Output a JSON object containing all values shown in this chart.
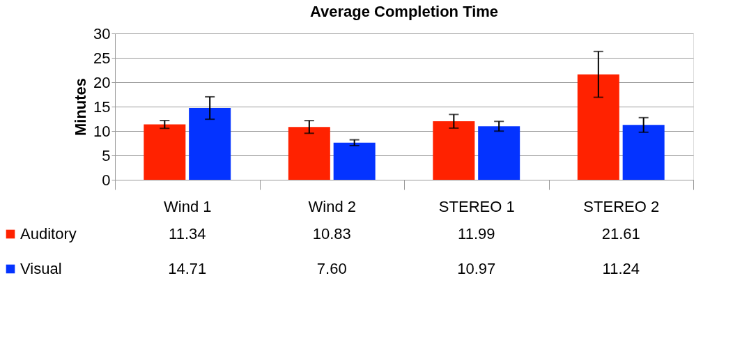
{
  "chart_data": {
    "type": "bar",
    "title": "Average Completion Time",
    "ylabel": "Minutes",
    "categories": [
      "Wind 1",
      "Wind 2",
      "STEREO 1",
      "STEREO 2"
    ],
    "series": [
      {
        "name": "Auditory",
        "color": "#ff2200",
        "values": [
          11.34,
          10.83,
          11.99,
          21.61
        ],
        "value_labels": [
          "11.34",
          "10.83",
          "11.99",
          "21.61"
        ],
        "errors": [
          0.8,
          1.3,
          1.4,
          4.7
        ]
      },
      {
        "name": "Visual",
        "color": "#0433ff",
        "values": [
          14.71,
          7.6,
          10.97,
          11.24
        ],
        "value_labels": [
          "14.71",
          "7.60",
          "10.97",
          "11.24"
        ],
        "errors": [
          2.3,
          0.6,
          1.0,
          1.5
        ]
      }
    ],
    "ylim": [
      0,
      30
    ],
    "yticks": [
      0,
      5,
      10,
      15,
      20,
      25,
      30
    ],
    "grid": "y",
    "legend": "bottom left"
  }
}
